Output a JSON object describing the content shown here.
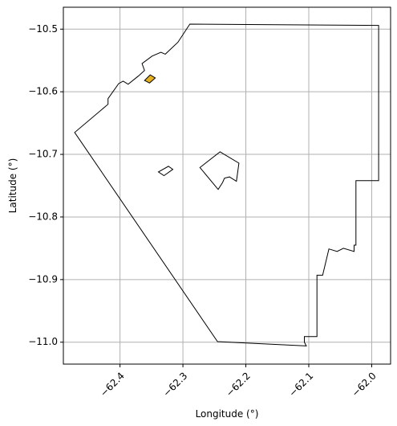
{
  "chart_data": {
    "type": "map",
    "title": "",
    "xlabel": "Longitude (°)",
    "ylabel": "Latitude (°)",
    "xlim": [
      -62.49,
      -61.97
    ],
    "ylim": [
      -11.035,
      -10.465
    ],
    "grid": true,
    "xticks": [
      {
        "value": -62.4,
        "label": "−62.4"
      },
      {
        "value": -62.3,
        "label": "−62.3"
      },
      {
        "value": -62.2,
        "label": "−62.2"
      },
      {
        "value": -62.1,
        "label": "−62.1"
      },
      {
        "value": -62.0,
        "label": "−62.0"
      }
    ],
    "yticks": [
      {
        "value": -10.5,
        "label": "−10.5"
      },
      {
        "value": -10.6,
        "label": "−10.6"
      },
      {
        "value": -10.7,
        "label": "−10.7"
      },
      {
        "value": -10.8,
        "label": "−10.8"
      },
      {
        "value": -10.9,
        "label": "−10.9"
      },
      {
        "value": -11.0,
        "label": "−11.0"
      }
    ],
    "xtick_rotation_deg": 45,
    "colors": {
      "outline": "#000000",
      "grid": "#b0b0b0",
      "highlight": "#e6b020"
    },
    "polygons": [
      {
        "name": "outer-boundary",
        "fill": "none",
        "points": [
          [
            -62.289,
            -10.492
          ],
          [
            -61.989,
            -10.494
          ],
          [
            -61.989,
            -10.742
          ],
          [
            -62.025,
            -10.742
          ],
          [
            -62.025,
            -10.845
          ],
          [
            -62.028,
            -10.845
          ],
          [
            -62.028,
            -10.855
          ],
          [
            -62.045,
            -10.85
          ],
          [
            -62.055,
            -10.855
          ],
          [
            -62.068,
            -10.851
          ],
          [
            -62.078,
            -10.893
          ],
          [
            -62.087,
            -10.893
          ],
          [
            -62.087,
            -10.991
          ],
          [
            -62.107,
            -10.991
          ],
          [
            -62.107,
            -11.0
          ],
          [
            -62.104,
            -11.006
          ],
          [
            -62.245,
            -10.999
          ],
          [
            -62.472,
            -10.665
          ],
          [
            -62.419,
            -10.62
          ],
          [
            -62.419,
            -10.611
          ],
          [
            -62.402,
            -10.587
          ],
          [
            -62.395,
            -10.583
          ],
          [
            -62.387,
            -10.588
          ],
          [
            -62.371,
            -10.575
          ],
          [
            -62.361,
            -10.566
          ],
          [
            -62.365,
            -10.555
          ],
          [
            -62.349,
            -10.543
          ],
          [
            -62.335,
            -10.537
          ],
          [
            -62.328,
            -10.54
          ],
          [
            -62.308,
            -10.521
          ]
        ]
      },
      {
        "name": "inner-hole-center",
        "fill": "none",
        "points": [
          [
            -62.241,
            -10.696
          ],
          [
            -62.211,
            -10.714
          ],
          [
            -62.215,
            -10.743
          ],
          [
            -62.226,
            -10.736
          ],
          [
            -62.234,
            -10.738
          ],
          [
            -62.237,
            -10.745
          ],
          [
            -62.244,
            -10.756
          ],
          [
            -62.273,
            -10.721
          ]
        ]
      },
      {
        "name": "inner-hole-west",
        "fill": "none",
        "points": [
          [
            -62.33,
            -10.734
          ],
          [
            -62.316,
            -10.724
          ],
          [
            -62.323,
            -10.719
          ],
          [
            -62.339,
            -10.728
          ]
        ]
      },
      {
        "name": "highlighted-parcel",
        "fill": "highlight",
        "points": [
          [
            -62.361,
            -10.582
          ],
          [
            -62.353,
            -10.586
          ],
          [
            -62.344,
            -10.578
          ],
          [
            -62.352,
            -10.573
          ]
        ]
      }
    ]
  }
}
